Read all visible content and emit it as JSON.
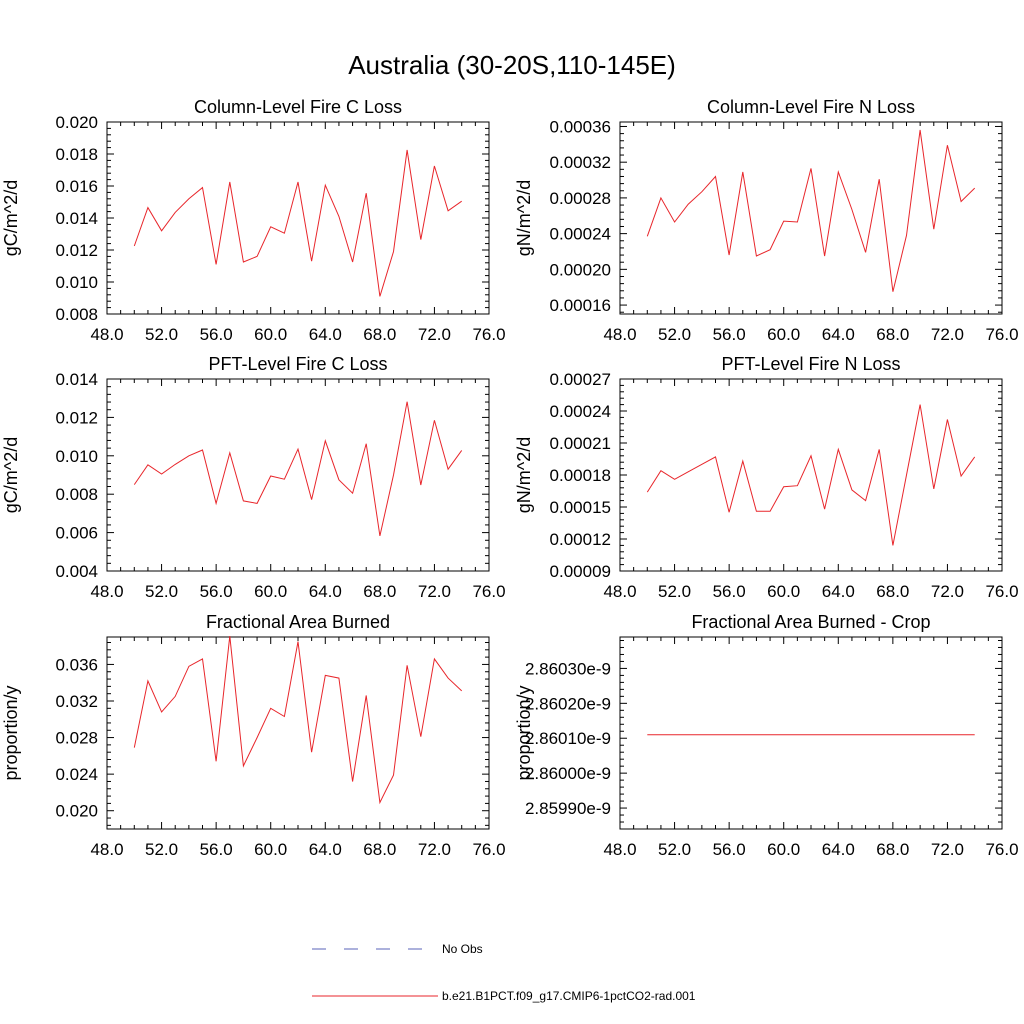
{
  "figure": {
    "title": "Australia (30-20S,110-145E)"
  },
  "legend": {
    "entries": [
      {
        "label": "No Obs",
        "color": "#5a63b8",
        "style": "dashed"
      },
      {
        "label": "b.e21.B1PCT.f09_g17.CMIP6-1pctCO2-rad.001",
        "color": "#e8262b",
        "style": "solid"
      }
    ]
  },
  "colors": {
    "series": "#e8262b",
    "axes": "#000000"
  },
  "chart_data": [
    {
      "type": "line",
      "title": "Column-Level Fire C Loss",
      "ylabel": "gC/m^2/d",
      "xlim": [
        48,
        76
      ],
      "ylim": [
        0.008,
        0.02
      ],
      "xticks": [
        48,
        52,
        56,
        60,
        64,
        68,
        72,
        76
      ],
      "xtick_labels": [
        "48.0",
        "52.0",
        "56.0",
        "60.0",
        "64.0",
        "68.0",
        "72.0",
        "76.0"
      ],
      "yticks": [
        0.008,
        0.01,
        0.012,
        0.014,
        0.016,
        0.018,
        0.02
      ],
      "ytick_labels": [
        "0.008",
        "0.010",
        "0.012",
        "0.014",
        "0.016",
        "0.018",
        "0.020"
      ],
      "series": [
        {
          "x": [
            50,
            51,
            52,
            53,
            54,
            55,
            56,
            57,
            58,
            59,
            60,
            61,
            62,
            63,
            64,
            65,
            66,
            67,
            68,
            69,
            70,
            71,
            72,
            73,
            74
          ],
          "values": [
            0.01225,
            0.01465,
            0.0132,
            0.01435,
            0.0152,
            0.0159,
            0.0111,
            0.01625,
            0.01125,
            0.0116,
            0.01345,
            0.01305,
            0.01625,
            0.0113,
            0.01605,
            0.0141,
            0.01125,
            0.01555,
            0.0091,
            0.0119,
            0.01825,
            0.01265,
            0.01725,
            0.01445,
            0.01505
          ]
        }
      ]
    },
    {
      "type": "line",
      "title": "Column-Level Fire N Loss",
      "ylabel": "gN/m^2/d",
      "xlim": [
        48,
        76
      ],
      "ylim": [
        0.00015,
        0.000365
      ],
      "xticks": [
        48,
        52,
        56,
        60,
        64,
        68,
        72,
        76
      ],
      "xtick_labels": [
        "48.0",
        "52.0",
        "56.0",
        "60.0",
        "64.0",
        "68.0",
        "72.0",
        "76.0"
      ],
      "yticks": [
        0.00016,
        0.0002,
        0.00024,
        0.00028,
        0.00032,
        0.00036
      ],
      "ytick_labels": [
        "0.00016",
        "0.00020",
        "0.00024",
        "0.00028",
        "0.00032",
        "0.00036"
      ],
      "series": [
        {
          "x": [
            50,
            51,
            52,
            53,
            54,
            55,
            56,
            57,
            58,
            59,
            60,
            61,
            62,
            63,
            64,
            65,
            66,
            67,
            68,
            69,
            70,
            71,
            72,
            73,
            74
          ],
          "values": [
            0.000237,
            0.00028,
            0.000253,
            0.000273,
            0.000287,
            0.000304,
            0.000216,
            0.000309,
            0.000215,
            0.000222,
            0.000254,
            0.000253,
            0.000313,
            0.000215,
            0.000309,
            0.000267,
            0.000219,
            0.000301,
            0.000175,
            0.000238,
            0.000356,
            0.000245,
            0.000339,
            0.000276,
            0.000291
          ]
        }
      ]
    },
    {
      "type": "line",
      "title": "PFT-Level Fire C Loss",
      "ylabel": "gC/m^2/d",
      "xlim": [
        48,
        76
      ],
      "ylim": [
        0.004,
        0.014
      ],
      "xticks": [
        48,
        52,
        56,
        60,
        64,
        68,
        72,
        76
      ],
      "xtick_labels": [
        "48.0",
        "52.0",
        "56.0",
        "60.0",
        "64.0",
        "68.0",
        "72.0",
        "76.0"
      ],
      "yticks": [
        0.004,
        0.006,
        0.008,
        0.01,
        0.012,
        0.014
      ],
      "ytick_labels": [
        "0.004",
        "0.006",
        "0.008",
        "0.010",
        "0.012",
        "0.014"
      ],
      "series": [
        {
          "x": [
            50,
            51,
            52,
            53,
            54,
            55,
            56,
            57,
            58,
            59,
            60,
            61,
            62,
            63,
            64,
            65,
            66,
            67,
            68,
            69,
            70,
            71,
            72,
            73,
            74
          ],
          "values": [
            0.0085,
            0.00953,
            0.00905,
            0.00955,
            0.01,
            0.0103,
            0.00752,
            0.01015,
            0.00765,
            0.00752,
            0.00895,
            0.00878,
            0.01035,
            0.00772,
            0.01078,
            0.00875,
            0.00805,
            0.01063,
            0.00583,
            0.009,
            0.01282,
            0.00848,
            0.01185,
            0.0093,
            0.01028
          ]
        }
      ]
    },
    {
      "type": "line",
      "title": "PFT-Level Fire N Loss",
      "ylabel": "gN/m^2/d",
      "xlim": [
        48,
        76
      ],
      "ylim": [
        9e-05,
        0.00027
      ],
      "xticks": [
        48,
        52,
        56,
        60,
        64,
        68,
        72,
        76
      ],
      "xtick_labels": [
        "48.0",
        "52.0",
        "56.0",
        "60.0",
        "64.0",
        "68.0",
        "72.0",
        "76.0"
      ],
      "yticks": [
        9e-05,
        0.00012,
        0.00015,
        0.00018,
        0.00021,
        0.00024,
        0.00027
      ],
      "ytick_labels": [
        "0.00009",
        "0.00012",
        "0.00015",
        "0.00018",
        "0.00021",
        "0.00024",
        "0.00027"
      ],
      "series": [
        {
          "x": [
            50,
            51,
            52,
            53,
            54,
            55,
            56,
            57,
            58,
            59,
            60,
            61,
            62,
            63,
            64,
            65,
            66,
            67,
            68,
            69,
            70,
            71,
            72,
            73,
            74
          ],
          "values": [
            0.000164,
            0.000184,
            0.000176,
            0.000183,
            0.00019,
            0.000197,
            0.000145,
            0.000193,
            0.000146,
            0.000146,
            0.000169,
            0.00017,
            0.000198,
            0.000148,
            0.000204,
            0.000166,
            0.000156,
            0.000204,
            0.000114,
            0.00018,
            0.000246,
            0.000167,
            0.000232,
            0.000179,
            0.000197
          ]
        }
      ]
    },
    {
      "type": "line",
      "title": "Fractional Area Burned",
      "ylabel": "proportion/y",
      "xlim": [
        48,
        76
      ],
      "ylim": [
        0.018,
        0.039
      ],
      "xticks": [
        48,
        52,
        56,
        60,
        64,
        68,
        72,
        76
      ],
      "xtick_labels": [
        "48.0",
        "52.0",
        "56.0",
        "60.0",
        "64.0",
        "68.0",
        "72.0",
        "76.0"
      ],
      "yticks": [
        0.02,
        0.024,
        0.028,
        0.032,
        0.036
      ],
      "ytick_labels": [
        "0.020",
        "0.024",
        "0.028",
        "0.032",
        "0.036"
      ],
      "series": [
        {
          "x": [
            50,
            51,
            52,
            53,
            54,
            55,
            56,
            57,
            58,
            59,
            60,
            61,
            62,
            63,
            64,
            65,
            66,
            67,
            68,
            69,
            70,
            71,
            72,
            73,
            74
          ],
          "values": [
            0.0269,
            0.0342,
            0.0308,
            0.0325,
            0.0358,
            0.0366,
            0.0254,
            0.0391,
            0.0249,
            0.028,
            0.0312,
            0.0303,
            0.0385,
            0.0264,
            0.0348,
            0.0345,
            0.0232,
            0.0326,
            0.0209,
            0.0239,
            0.0359,
            0.0281,
            0.0366,
            0.0345,
            0.0331
          ]
        }
      ]
    },
    {
      "type": "line",
      "title": "Fractional Area Burned - Crop",
      "ylabel": "proportion/y",
      "xlim": [
        48,
        76
      ],
      "ylim": [
        2.85984e-09,
        2.86039e-09
      ],
      "xticks": [
        48,
        52,
        56,
        60,
        64,
        68,
        72,
        76
      ],
      "xtick_labels": [
        "48.0",
        "52.0",
        "56.0",
        "60.0",
        "64.0",
        "68.0",
        "72.0",
        "76.0"
      ],
      "yticks": [
        2.8599e-09,
        2.86e-09,
        2.8601e-09,
        2.8602e-09,
        2.8603e-09
      ],
      "ytick_labels": [
        "2.85990e-9",
        "2.86000e-9",
        "2.86010e-9",
        "2.86020e-9",
        "2.86030e-9"
      ],
      "series": [
        {
          "x": [
            50,
            51,
            52,
            53,
            54,
            55,
            56,
            57,
            58,
            59,
            60,
            61,
            62,
            63,
            64,
            65,
            66,
            67,
            68,
            69,
            70,
            71,
            72,
            73,
            74
          ],
          "values": [
            2.86011e-09,
            2.86011e-09,
            2.86011e-09,
            2.86011e-09,
            2.86011e-09,
            2.86011e-09,
            2.86011e-09,
            2.86011e-09,
            2.86011e-09,
            2.86011e-09,
            2.86011e-09,
            2.86011e-09,
            2.86011e-09,
            2.86011e-09,
            2.86011e-09,
            2.86011e-09,
            2.86011e-09,
            2.86011e-09,
            2.86011e-09,
            2.86011e-09,
            2.86011e-09,
            2.86011e-09,
            2.86011e-09,
            2.86011e-09,
            2.86011e-09
          ]
        }
      ]
    }
  ]
}
